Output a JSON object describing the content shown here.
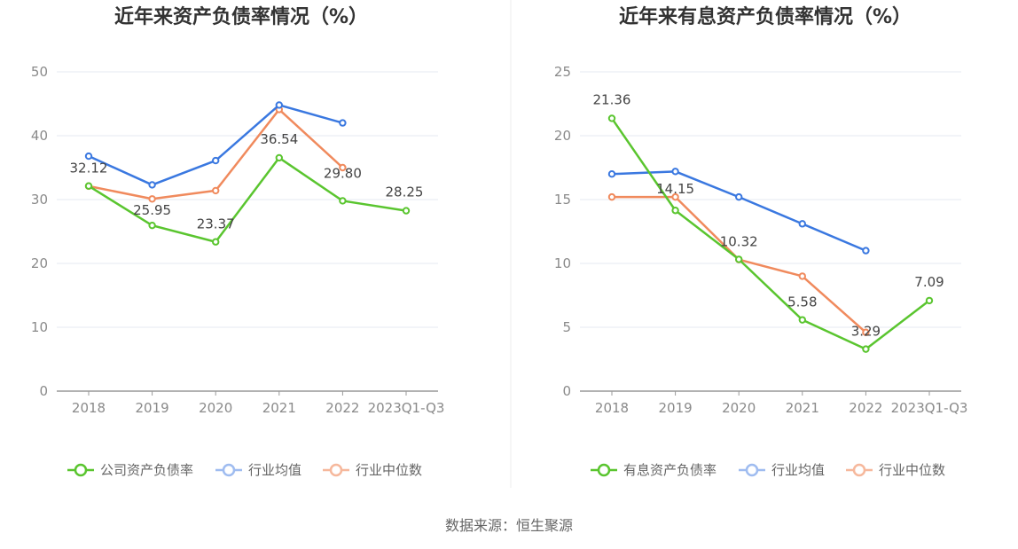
{
  "source_text": "数据来源：恒生聚源",
  "chart_data": [
    {
      "type": "line",
      "title": "近年来资产负债率情况（%）",
      "categories": [
        "2018",
        "2019",
        "2020",
        "2021",
        "2022",
        "2023Q1-Q3"
      ],
      "ylim": [
        0,
        50
      ],
      "yticks": [
        0,
        10,
        20,
        30,
        40,
        50
      ],
      "grid": true,
      "legend_position": "bottom",
      "series": [
        {
          "name": "公司资产负债率",
          "color": "#5ac52f",
          "labeled": true,
          "values": [
            32.12,
            25.95,
            23.37,
            36.54,
            29.8,
            28.25
          ],
          "labels": [
            "32.12",
            "25.95",
            "23.37",
            "36.54",
            "29.80",
            "28.25"
          ]
        },
        {
          "name": "行业均值",
          "color": "#3a78e0",
          "labeled": false,
          "values": [
            36.8,
            32.3,
            36.1,
            44.8,
            42.0,
            null
          ]
        },
        {
          "name": "行业中位数",
          "color": "#f08a5d",
          "labeled": false,
          "values": [
            32.1,
            30.1,
            31.4,
            44.1,
            35.0,
            null
          ]
        }
      ]
    },
    {
      "type": "line",
      "title": "近年来有息资产负债率情况（%）",
      "categories": [
        "2018",
        "2019",
        "2020",
        "2021",
        "2022",
        "2023Q1-Q3"
      ],
      "ylim": [
        0,
        25
      ],
      "yticks": [
        0,
        5,
        10,
        15,
        20,
        25
      ],
      "grid": true,
      "legend_position": "bottom",
      "series": [
        {
          "name": "有息资产负债率",
          "color": "#5ac52f",
          "labeled": true,
          "values": [
            21.36,
            14.15,
            10.32,
            5.58,
            3.29,
            7.09
          ],
          "labels": [
            "21.36",
            "14.15",
            "10.32",
            "5.58",
            "3.29",
            "7.09"
          ]
        },
        {
          "name": "行业均值",
          "color": "#3a78e0",
          "labeled": false,
          "values": [
            17.0,
            17.2,
            15.2,
            13.1,
            11.0,
            null
          ]
        },
        {
          "name": "行业中位数",
          "color": "#f08a5d",
          "labeled": false,
          "values": [
            15.2,
            15.2,
            10.3,
            9.0,
            4.6,
            null
          ]
        }
      ]
    }
  ]
}
